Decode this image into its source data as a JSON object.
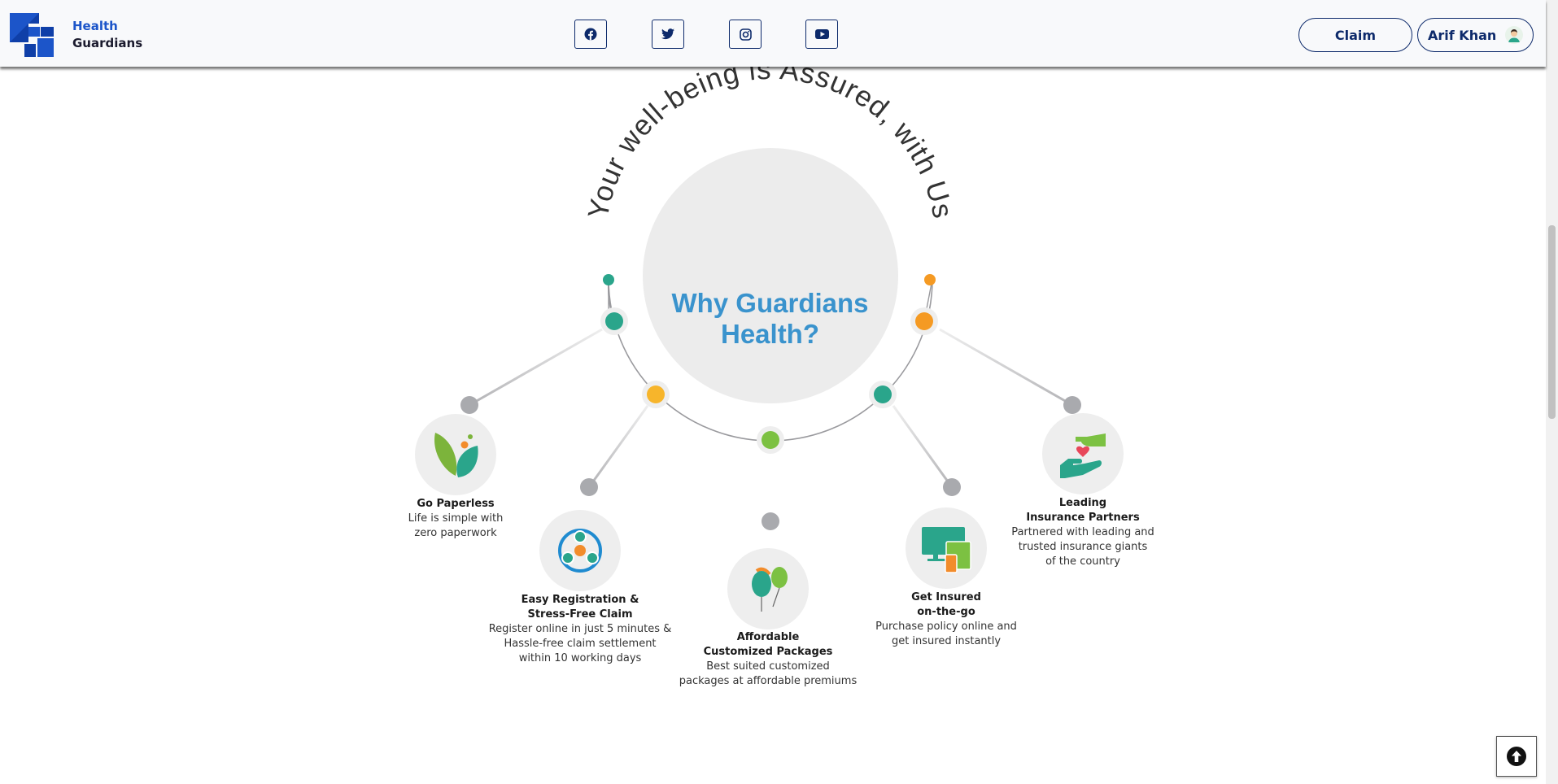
{
  "header": {
    "brand": {
      "line1": "Health",
      "line2": "Guardians"
    },
    "social": [
      {
        "name": "facebook",
        "icon": "facebook-icon"
      },
      {
        "name": "twitter",
        "icon": "twitter-icon"
      },
      {
        "name": "instagram",
        "icon": "instagram-icon"
      },
      {
        "name": "youtube",
        "icon": "youtube-icon"
      }
    ],
    "claim_label": "Claim",
    "user_name": "Arif Khan"
  },
  "section": {
    "arc_title": "Your well-being is Assured, with Us",
    "center_title_line1": "Why Guardians",
    "center_title_line2": "Health?",
    "features": [
      {
        "title_line1": "Go Paperless",
        "title_line2": "",
        "desc_line1": "Life is simple with",
        "desc_line2": "zero paperwork",
        "desc_line3": "",
        "icon": "leaves-icon"
      },
      {
        "title_line1": "Easy Registration &",
        "title_line2": "Stress-Free Claim",
        "desc_line1": "Register online in just 5 minutes &",
        "desc_line2": "Hassle-free claim settlement",
        "desc_line3": "within 10 working days",
        "icon": "spinner-nodes-icon"
      },
      {
        "title_line1": "Affordable",
        "title_line2": "Customized Packages",
        "desc_line1": "Best suited customized",
        "desc_line2": "packages at affordable premiums",
        "desc_line3": "",
        "icon": "balloons-icon"
      },
      {
        "title_line1": "Get Insured",
        "title_line2": "on-the-go",
        "desc_line1": "Purchase policy online and",
        "desc_line2": "get insured instantly",
        "desc_line3": "",
        "icon": "devices-icon"
      },
      {
        "title_line1": "Leading",
        "title_line2": "Insurance Partners",
        "desc_line1": "Partnered with leading and",
        "desc_line2": "trusted insurance giants",
        "desc_line3": "of the country",
        "icon": "hands-heart-icon"
      }
    ]
  },
  "colors": {
    "brand_blue": "#1c55c9",
    "navy": "#0d2a6b",
    "title_blue": "#3a93cd",
    "teal": "#2aa58b",
    "orange": "#f59a23",
    "yellow": "#f7b52b",
    "green": "#7cc142",
    "grey_dot": "#a9aaae"
  },
  "scroll_top_icon": "arrow-up-circle-icon"
}
